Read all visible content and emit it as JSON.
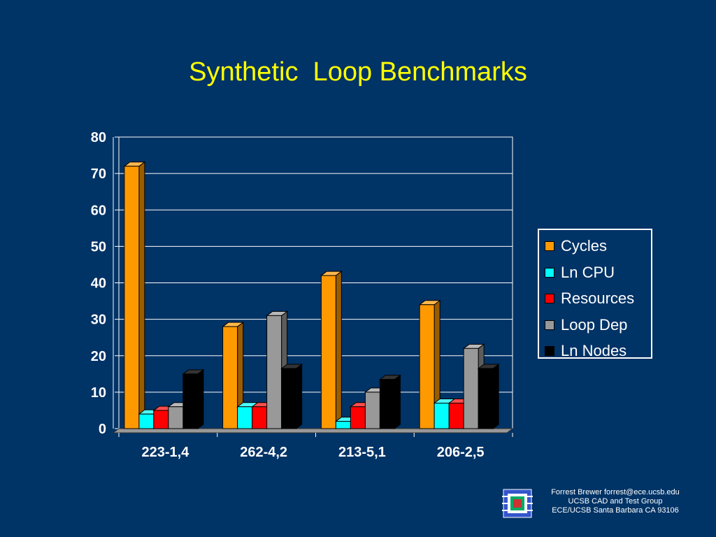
{
  "slide": {
    "title": "Synthetic  Loop Benchmarks"
  },
  "footer": {
    "line1": "Forrest Brewer  forrest@ece.ucsb.edu",
    "line2": "UCSB CAD and Test Group",
    "line3": "ECE/UCSB Santa Barbara CA 93106"
  },
  "logo_icon": "ucsb-cad-logo-icon",
  "chart_data": {
    "type": "bar",
    "title": "Synthetic  Loop Benchmarks",
    "xlabel": "",
    "ylabel": "",
    "ylim": [
      0,
      80
    ],
    "yticks": [
      0,
      10,
      20,
      30,
      40,
      50,
      60,
      70,
      80
    ],
    "grid": true,
    "legend_position": "right",
    "categories": [
      "223-1,4",
      "262-4,2",
      "213-5,1",
      "206-2,5"
    ],
    "series": [
      {
        "name": "Cycles",
        "color": "#ff9900",
        "values": [
          72,
          28,
          42,
          34
        ]
      },
      {
        "name": "Ln CPU",
        "color": "#00ffff",
        "values": [
          4,
          6,
          2,
          7
        ]
      },
      {
        "name": "Resources",
        "color": "#ff0000",
        "values": [
          5,
          6,
          6,
          7
        ]
      },
      {
        "name": "Loop Dep",
        "color": "#999999",
        "values": [
          6,
          31,
          10,
          22
        ]
      },
      {
        "name": "Ln Nodes",
        "color": "#000000",
        "values": [
          15,
          16.5,
          13.5,
          16.5
        ]
      }
    ]
  }
}
